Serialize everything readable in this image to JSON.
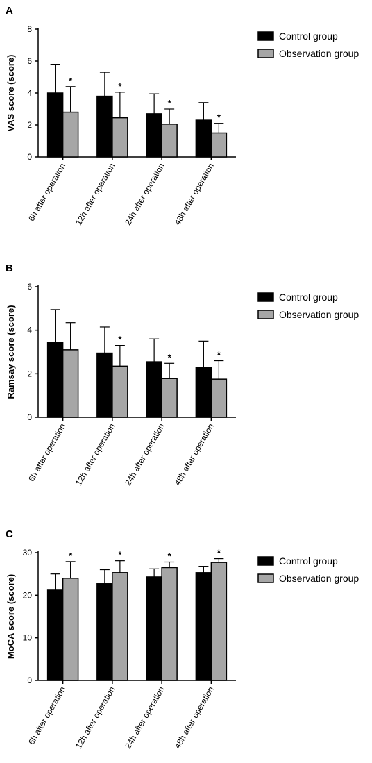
{
  "chart_data": [
    {
      "type": "bar",
      "panel_label": "A",
      "categories": [
        "6h after operation",
        "12h after operation",
        "24h after operation",
        "48h after operation"
      ],
      "ylabel": "VAS score (score)",
      "ylim": [
        0,
        8
      ],
      "yticks": [
        0,
        2,
        4,
        6,
        8
      ],
      "series": [
        {
          "name": "Control group",
          "color": "#000000",
          "values": [
            4.0,
            3.8,
            2.7,
            2.3
          ],
          "errors": [
            1.8,
            1.5,
            1.25,
            1.1
          ]
        },
        {
          "name": "Observation group",
          "color": "#a6a6a6",
          "values": [
            2.8,
            2.45,
            2.05,
            1.5
          ],
          "errors": [
            1.6,
            1.6,
            0.95,
            0.6
          ]
        }
      ],
      "significance": [
        "*",
        "*",
        "*",
        "*"
      ]
    },
    {
      "type": "bar",
      "panel_label": "B",
      "categories": [
        "6h after operation",
        "12h after operation",
        "24h after operation",
        "48h after operation"
      ],
      "ylabel": "Ramsay score (score)",
      "ylim": [
        0,
        6
      ],
      "yticks": [
        0,
        2,
        4,
        6
      ],
      "series": [
        {
          "name": "Control group",
          "color": "#000000",
          "values": [
            3.45,
            2.95,
            2.55,
            2.3
          ],
          "errors": [
            1.5,
            1.2,
            1.05,
            1.2
          ]
        },
        {
          "name": "Observation group",
          "color": "#a6a6a6",
          "values": [
            3.1,
            2.35,
            1.78,
            1.75
          ],
          "errors": [
            1.25,
            0.95,
            0.7,
            0.85
          ]
        }
      ],
      "significance": [
        "",
        "*",
        "*",
        "*"
      ]
    },
    {
      "type": "bar",
      "panel_label": "C",
      "categories": [
        "6h after operation",
        "12h after operation",
        "24h after operation",
        "48h after operation"
      ],
      "ylabel": "MoCA score  (score)",
      "ylim": [
        0,
        30
      ],
      "yticks": [
        0,
        10,
        20,
        30
      ],
      "series": [
        {
          "name": "Control group",
          "color": "#000000",
          "values": [
            21.2,
            22.7,
            24.3,
            25.3
          ],
          "errors": [
            3.8,
            3.3,
            1.9,
            1.5
          ]
        },
        {
          "name": "Observation group",
          "color": "#a6a6a6",
          "values": [
            24.0,
            25.3,
            26.5,
            27.7
          ],
          "errors": [
            3.9,
            2.8,
            1.3,
            0.9
          ]
        }
      ],
      "significance": [
        "*",
        "*",
        "*",
        "*"
      ]
    }
  ]
}
